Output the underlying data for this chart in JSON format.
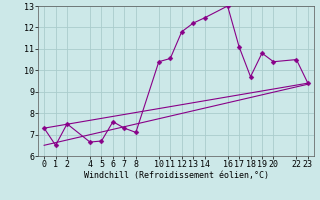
{
  "bg_color": "#cce8e8",
  "grid_color": "#aacccc",
  "line_color": "#880088",
  "xlabel": "Windchill (Refroidissement éolien,°C)",
  "xlim": [
    -0.5,
    23.5
  ],
  "ylim": [
    6,
    13
  ],
  "yticks": [
    6,
    7,
    8,
    9,
    10,
    11,
    12,
    13
  ],
  "xticks": [
    0,
    1,
    2,
    4,
    5,
    6,
    7,
    8,
    10,
    11,
    12,
    13,
    14,
    16,
    17,
    18,
    19,
    20,
    22,
    23
  ],
  "line1_x": [
    0,
    1,
    2,
    4,
    5,
    6,
    7,
    8,
    10,
    11,
    12,
    13,
    14,
    16,
    17,
    18,
    19,
    20,
    22,
    23
  ],
  "line1_y": [
    7.3,
    6.5,
    7.5,
    6.65,
    6.7,
    7.6,
    7.3,
    7.1,
    10.4,
    10.55,
    11.8,
    12.2,
    12.45,
    13.0,
    11.1,
    9.7,
    10.8,
    10.4,
    10.5,
    9.4
  ],
  "line2_x": [
    0,
    23
  ],
  "line2_y": [
    7.3,
    9.4
  ],
  "line3_x": [
    0,
    23
  ],
  "line3_y": [
    6.5,
    9.35
  ],
  "markersize": 2.5,
  "linewidth": 0.8,
  "xlabel_fontsize": 6,
  "tick_fontsize": 6
}
